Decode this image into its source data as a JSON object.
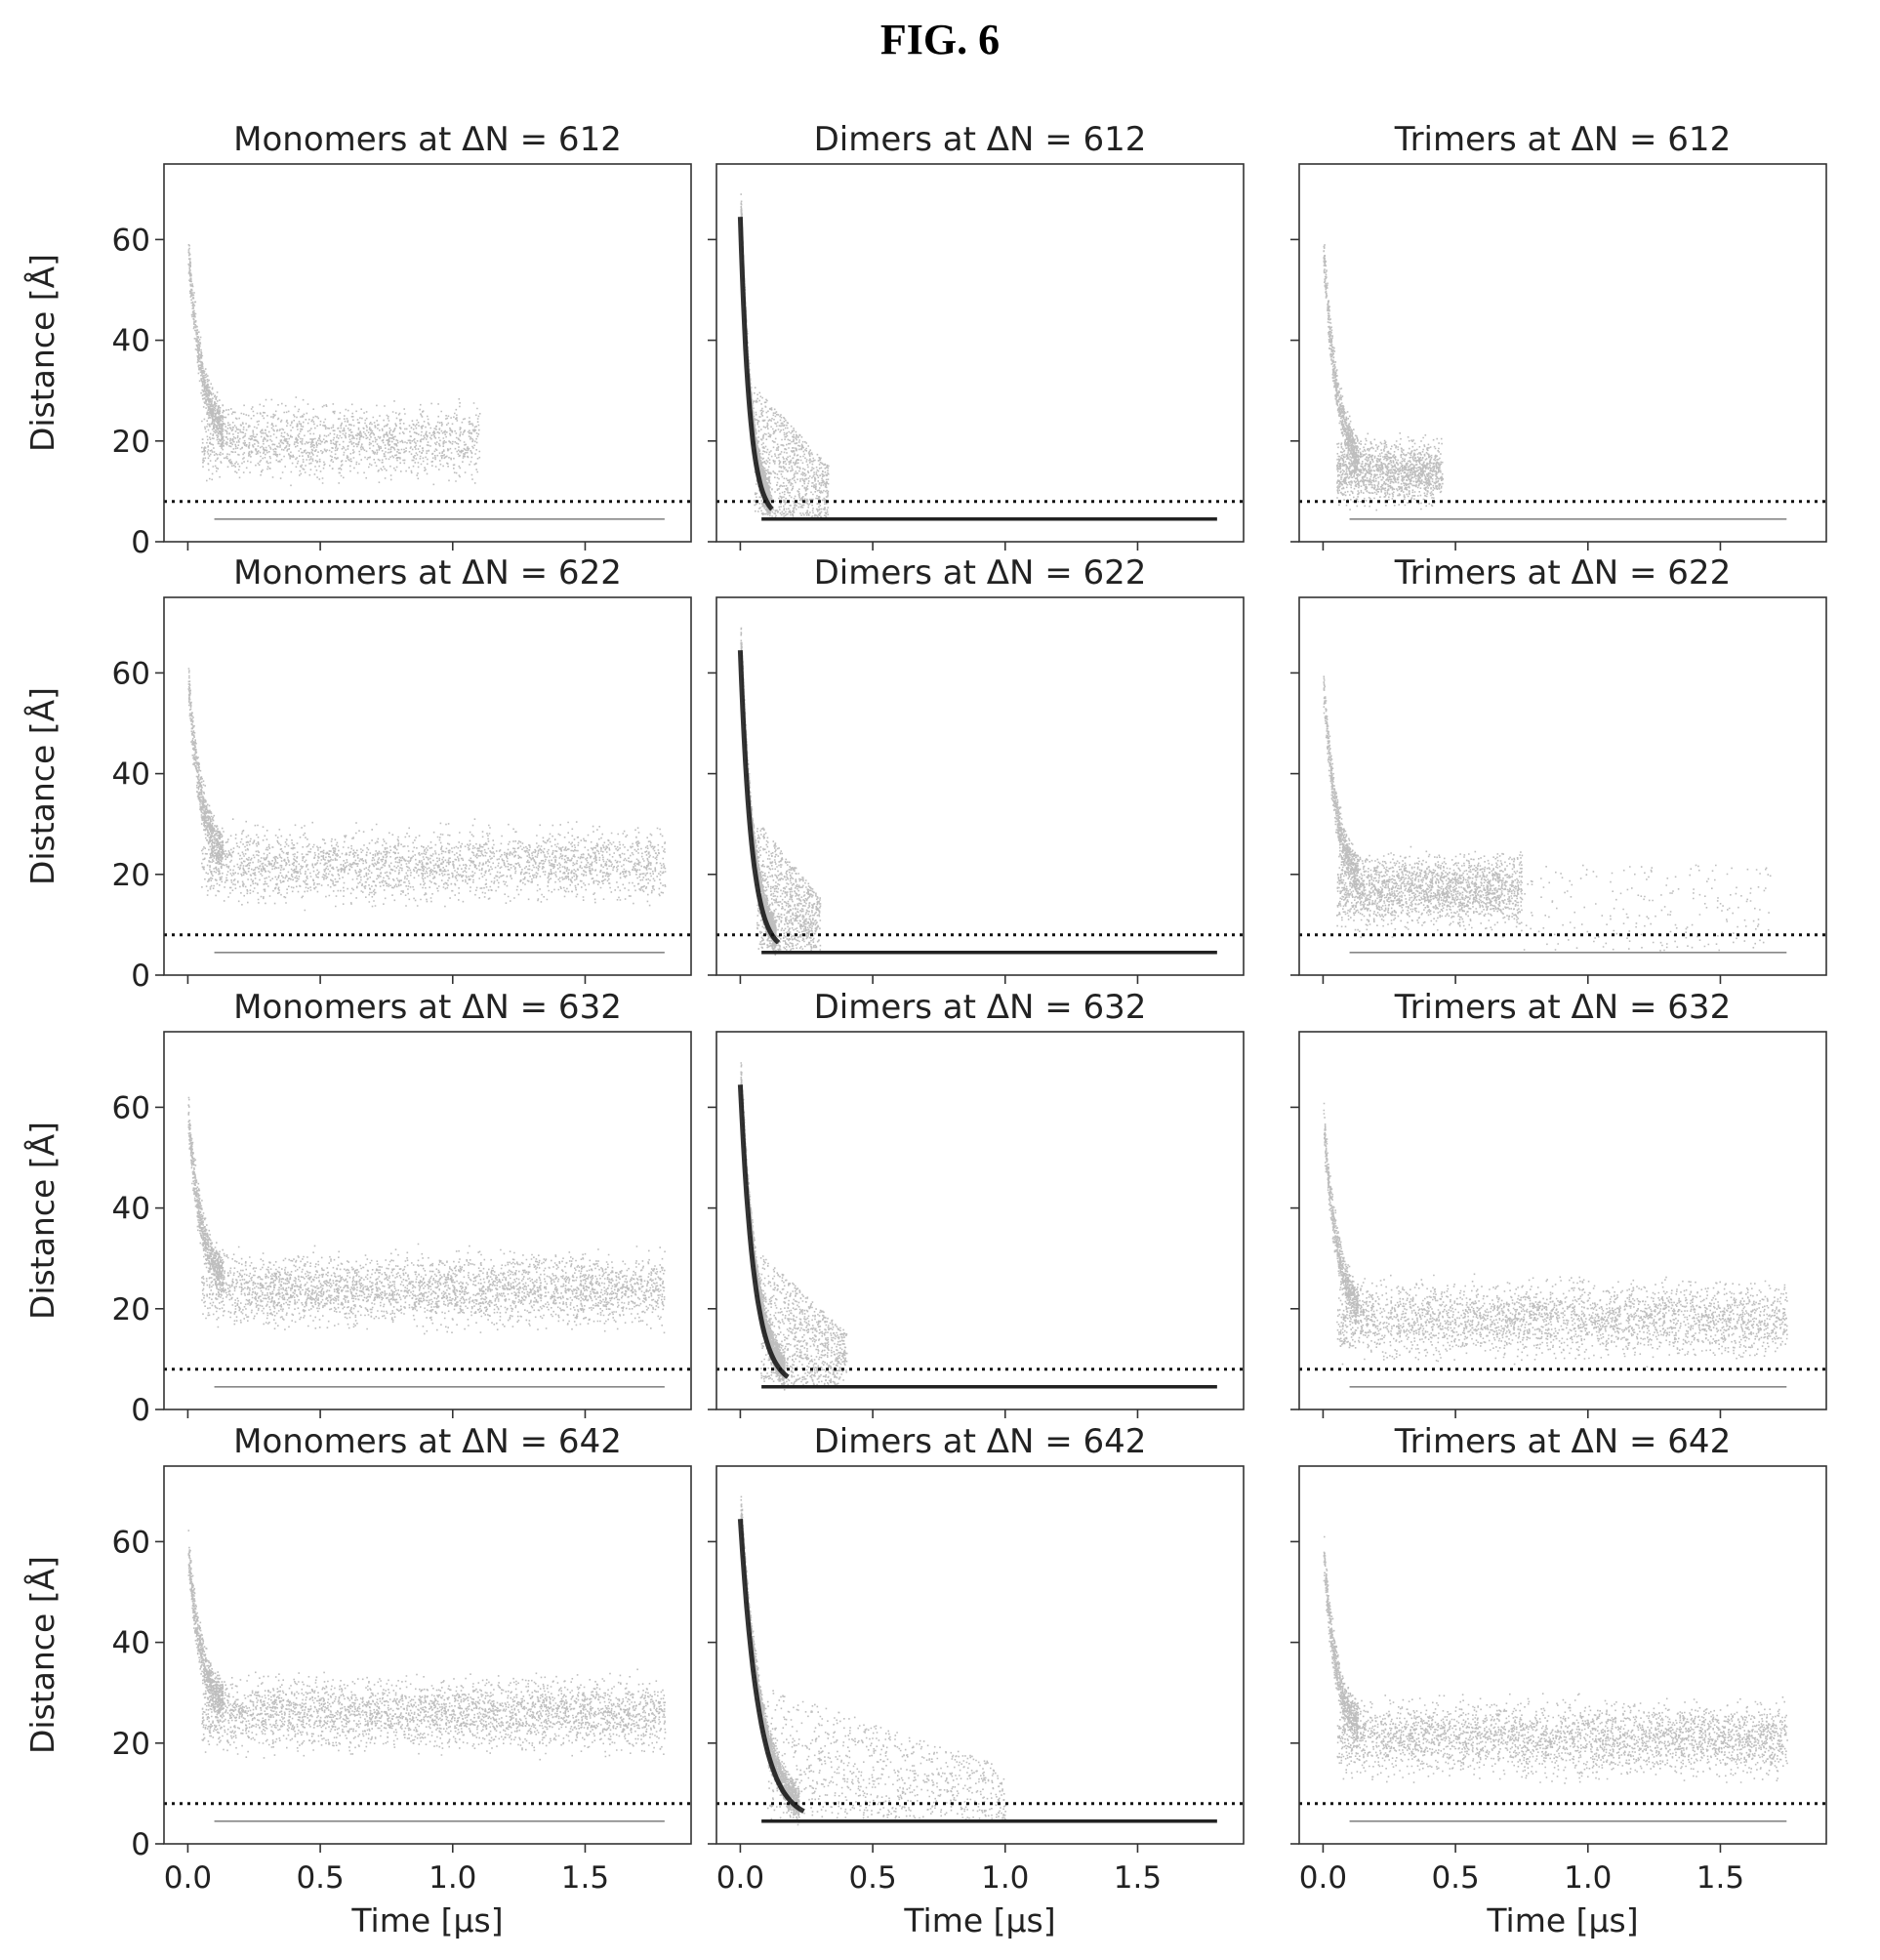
{
  "figure_label": "FIG. 6",
  "y_axis_label": "Distance [Å]",
  "x_axis_label": "Time [μs]",
  "chart_data": {
    "type": "scatter",
    "layout": {
      "rows": 4,
      "cols": 3
    },
    "xlim": [
      -0.09,
      1.9
    ],
    "ylim": [
      0,
      75
    ],
    "x_ticks": [
      0.0,
      0.5,
      1.0,
      1.5
    ],
    "x_tick_labels": [
      "0.0",
      "0.5",
      "1.0",
      "1.5"
    ],
    "y_ticks": [
      0,
      20,
      40,
      60
    ],
    "y_tick_labels": [
      "0",
      "20",
      "40",
      "60"
    ],
    "threshold_line": {
      "y": 8,
      "style": "dotted"
    },
    "point_color": "#888888",
    "panels": [
      {
        "title": "Monomers at ΔN = 612",
        "kind": "monomer",
        "run_end": 1.1,
        "plateau": 20,
        "spread": 7,
        "bound_end": 1.8,
        "density": 0.5
      },
      {
        "title": "Dimers at ΔN = 612",
        "kind": "dimer",
        "descent_end": 0.1,
        "tail_end": 0.33,
        "bound_end": 1.8
      },
      {
        "title": "Trimers at ΔN = 612",
        "kind": "trimer",
        "run_end": 0.45,
        "plateau": 14,
        "spread": 6,
        "bound_end": 1.75,
        "density": 0.45
      },
      {
        "title": "Monomers at ΔN = 622",
        "kind": "monomer",
        "run_end": 1.8,
        "plateau": 22,
        "spread": 7,
        "bound_end": 1.8,
        "density": 0.8
      },
      {
        "title": "Dimers at ΔN = 622",
        "kind": "dimer",
        "descent_end": 0.12,
        "tail_end": 0.3,
        "bound_end": 1.8
      },
      {
        "title": "Trimers at ΔN = 622",
        "kind": "trimer",
        "run_end": 0.75,
        "plateau": 17,
        "spread": 7,
        "bound_end": 1.75,
        "density": 0.65,
        "sparse_end": 1.7
      },
      {
        "title": "Monomers at ΔN = 632",
        "kind": "monomer",
        "run_end": 1.8,
        "plateau": 24,
        "spread": 7,
        "bound_end": 1.8,
        "density": 1.0
      },
      {
        "title": "Dimers at ΔN = 632",
        "kind": "dimer",
        "descent_end": 0.15,
        "tail_end": 0.4,
        "bound_end": 1.8
      },
      {
        "title": "Trimers at ΔN = 632",
        "kind": "trimer",
        "run_end": 1.75,
        "plateau": 18,
        "spread": 7,
        "bound_end": 1.75,
        "density": 0.95
      },
      {
        "title": "Monomers at ΔN = 642",
        "kind": "monomer",
        "run_end": 1.8,
        "plateau": 26,
        "spread": 7,
        "bound_end": 1.8,
        "density": 1.0
      },
      {
        "title": "Dimers at ΔN = 642",
        "kind": "dimer",
        "descent_end": 0.2,
        "tail_end": 1.0,
        "bound_end": 1.8
      },
      {
        "title": "Trimers at ΔN = 642",
        "kind": "trimer",
        "run_end": 1.75,
        "plateau": 21,
        "spread": 7,
        "bound_end": 1.75,
        "density": 1.0
      }
    ]
  }
}
